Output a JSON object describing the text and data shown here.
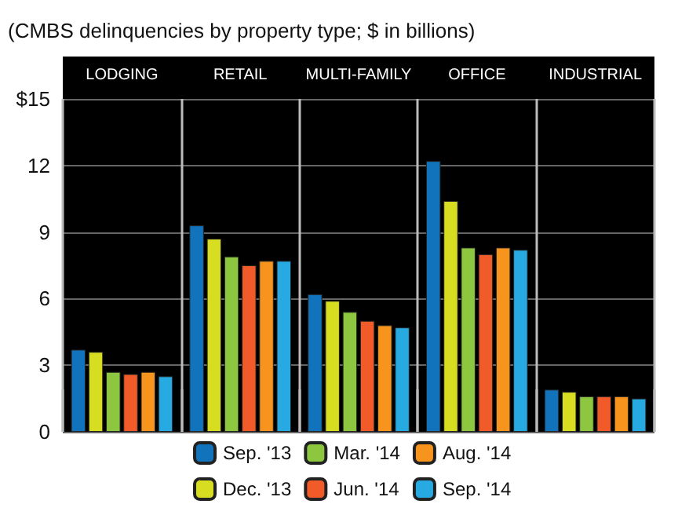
{
  "chart_data": {
    "type": "bar",
    "title": "(CMBS delinquencies by property type; $ in billions)",
    "categories": [
      "LODGING",
      "RETAIL",
      "MULTI-FAMILY",
      "OFFICE",
      "INDUSTRIAL"
    ],
    "series": [
      {
        "name": "Sep. '13",
        "color": "#1173bb",
        "values": [
          3.7,
          9.3,
          6.2,
          12.2,
          1.9
        ]
      },
      {
        "name": "Dec. '13",
        "color": "#d7de22",
        "values": [
          3.6,
          8.7,
          5.9,
          10.4,
          1.8
        ]
      },
      {
        "name": "Mar. '14",
        "color": "#8dc63f",
        "values": [
          2.7,
          7.9,
          5.4,
          8.3,
          1.6
        ]
      },
      {
        "name": "Jun. '14",
        "color": "#f15a29",
        "values": [
          2.6,
          7.5,
          5.0,
          8.0,
          1.6
        ]
      },
      {
        "name": "Aug. '14",
        "color": "#f7941d",
        "values": [
          2.7,
          7.7,
          4.8,
          8.3,
          1.6
        ]
      },
      {
        "name": "Sep. '14",
        "color": "#27aae1",
        "values": [
          2.5,
          7.7,
          4.7,
          8.2,
          1.5
        ]
      }
    ],
    "ylim": [
      0,
      15
    ],
    "yticks": [
      0,
      3,
      6,
      9,
      12,
      {
        "value": 15,
        "label": "$15"
      }
    ],
    "grid": "y",
    "legend": "bottom"
  }
}
